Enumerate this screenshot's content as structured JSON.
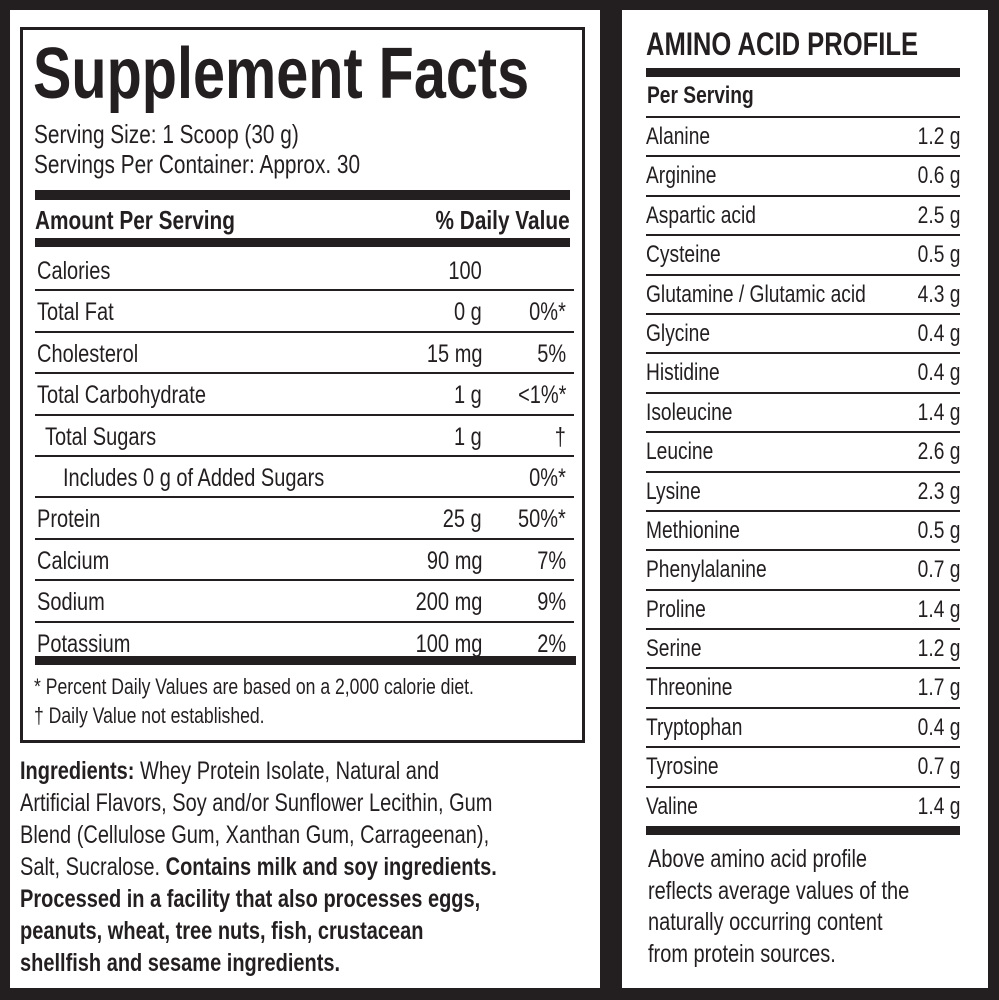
{
  "supplement_facts": {
    "title": "Supplement Facts",
    "serving_size": "Serving Size: 1 Scoop (30 g)",
    "servings_per_container": "Servings Per Container: Approx. 30",
    "header_left": "Amount Per Serving",
    "header_right": "% Daily Value",
    "rows": [
      {
        "label": "Calories",
        "amount": "100",
        "dv": ""
      },
      {
        "label": "Total Fat",
        "amount": "0 g",
        "dv": "0%*"
      },
      {
        "label": "Cholesterol",
        "amount": "15 mg",
        "dv": "5%"
      },
      {
        "label": "Total Carbohydrate",
        "amount": "1 g",
        "dv": "<1%*"
      },
      {
        "label": "Total Sugars",
        "amount": "1 g",
        "dv": "†"
      },
      {
        "label": "Includes 0 g of Added Sugars",
        "amount": "",
        "dv": "0%*"
      },
      {
        "label": "Protein",
        "amount": "25 g",
        "dv": "50%*"
      },
      {
        "label": "Calcium",
        "amount": "90 mg",
        "dv": "7%"
      },
      {
        "label": "Sodium",
        "amount": "200 mg",
        "dv": "9%"
      },
      {
        "label": "Potassium",
        "amount": "100 mg",
        "dv": "2%"
      }
    ],
    "footnote_1": "* Percent Daily Values are based on a 2,000 calorie diet.",
    "footnote_2": "† Daily Value not established."
  },
  "ingredients": {
    "label": "Ingredients:",
    "lines": [
      " Whey Protein Isolate, Natural and",
      "Artificial Flavors, Soy and/or Sunflower Lecithin, Gum",
      "Blend (Cellulose Gum, Xanthan Gum, Carrageenan),",
      "Salt, Sucralose. "
    ],
    "bold_lines": [
      "Contains milk and soy ingredients.",
      "Processed in a facility that also processes eggs,",
      "peanuts, wheat, tree nuts, fish, crustacean",
      "shellfish and sesame ingredients."
    ]
  },
  "amino_profile": {
    "title": "AMINO ACID PROFILE",
    "subheader": "Per Serving",
    "rows": [
      {
        "label": "Alanine",
        "value": "1.2 g"
      },
      {
        "label": "Arginine",
        "value": "0.6 g"
      },
      {
        "label": "Aspartic acid",
        "value": "2.5 g"
      },
      {
        "label": "Cysteine",
        "value": "0.5 g"
      },
      {
        "label": "Glutamine / Glutamic acid",
        "value": "4.3 g"
      },
      {
        "label": "Glycine",
        "value": "0.4 g"
      },
      {
        "label": "Histidine",
        "value": "0.4 g"
      },
      {
        "label": "Isoleucine",
        "value": "1.4 g"
      },
      {
        "label": "Leucine",
        "value": "2.6 g"
      },
      {
        "label": "Lysine",
        "value": "2.3 g"
      },
      {
        "label": "Methionine",
        "value": "0.5 g"
      },
      {
        "label": "Phenylalanine",
        "value": "0.7 g"
      },
      {
        "label": "Proline",
        "value": "1.4 g"
      },
      {
        "label": "Serine",
        "value": "1.2 g"
      },
      {
        "label": "Threonine",
        "value": "1.7 g"
      },
      {
        "label": "Tryptophan",
        "value": "0.4 g"
      },
      {
        "label": "Tyrosine",
        "value": "0.7 g"
      },
      {
        "label": "Valine",
        "value": "1.4 g"
      }
    ],
    "note_lines": [
      "Above amino acid profile",
      "reflects average values of the",
      "naturally occurring content",
      "from protein sources."
    ]
  }
}
